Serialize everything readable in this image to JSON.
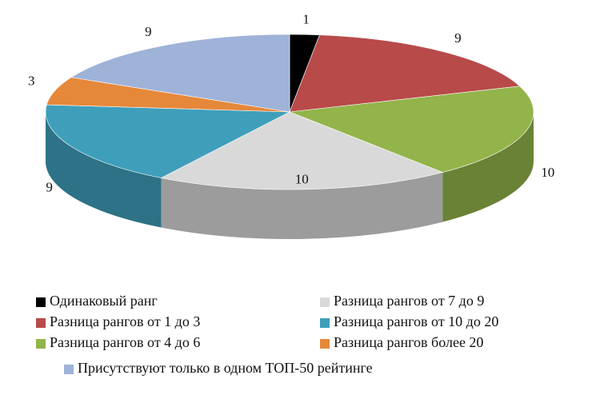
{
  "chart_data": {
    "type": "pie3d",
    "categories": [
      "Одинаковый ранг",
      "Разница рангов от 1 до 3",
      "Разница рангов от 4 до 6",
      "Разница рангов от 7 до 9",
      "Разница рангов от 10 до 20",
      "Разница рангов более 20",
      "Присутствуют только в одном ТОП-50 рейтинге"
    ],
    "values": [
      1,
      9,
      10,
      10,
      9,
      3,
      9
    ],
    "colors": [
      "#000000",
      "#b84a4a",
      "#93b44b",
      "#d9d9d9",
      "#3f9fba",
      "#e6883a",
      "#9fb2d8"
    ]
  }
}
